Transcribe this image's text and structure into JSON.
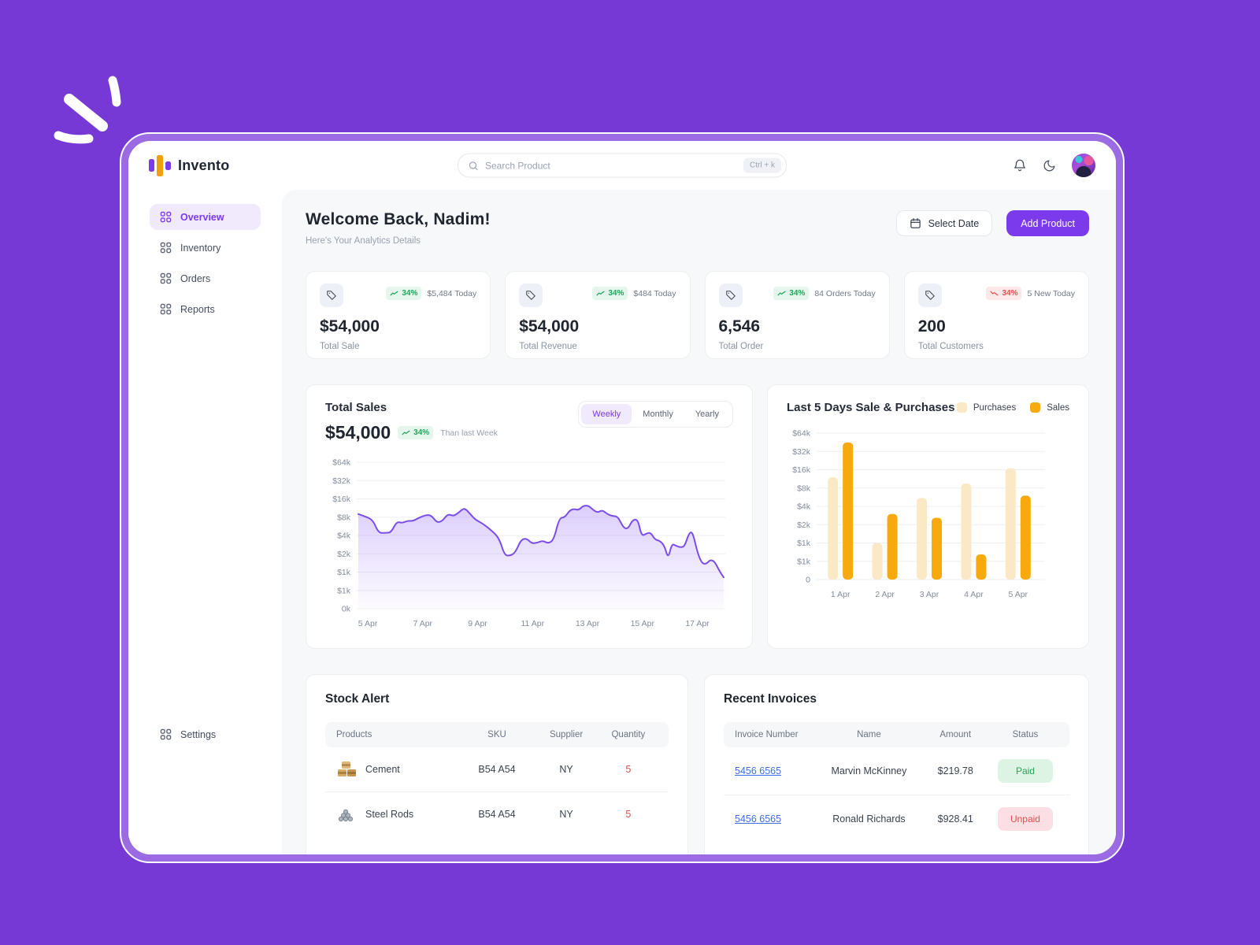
{
  "app": {
    "name": "Invento"
  },
  "topbar": {
    "search_placeholder": "Search Product",
    "search_shortcut": "Ctrl + k"
  },
  "sidebar": {
    "items": [
      {
        "label": "Overview",
        "active": true
      },
      {
        "label": "Inventory",
        "active": false
      },
      {
        "label": "Orders",
        "active": false
      },
      {
        "label": "Reports",
        "active": false
      }
    ],
    "settings_label": "Settings"
  },
  "header": {
    "title": "Welcome Back, Nadim!",
    "subtitle": "Here's Your Analytics Details",
    "select_date_label": "Select Date",
    "add_product_label": "Add Product"
  },
  "stats": [
    {
      "pct": "34%",
      "trend": "up",
      "note": "$5,484 Today",
      "value": "$54,000",
      "label": "Total Sale"
    },
    {
      "pct": "34%",
      "trend": "up",
      "note": "$484 Today",
      "value": "$54,000",
      "label": "Total Revenue"
    },
    {
      "pct": "34%",
      "trend": "up",
      "note": "84 Orders Today",
      "value": "6,546",
      "label": "Total Order"
    },
    {
      "pct": "34%",
      "trend": "down",
      "note": "5 New Today",
      "value": "200",
      "label": "Total Customers"
    }
  ],
  "sales_panel": {
    "title": "Total Sales",
    "value": "$54,000",
    "pct": "34%",
    "note": "Than last Week",
    "tabs": [
      "Weekly",
      "Monthly",
      "Yearly"
    ],
    "active_tab": "Weekly"
  },
  "bar_panel": {
    "title": "Last 5 Days Sale & Purchases",
    "legend": [
      {
        "name": "Purchases",
        "color": "#FBE9C6"
      },
      {
        "name": "Sales",
        "color": "#F7A90D"
      }
    ]
  },
  "chart_data": [
    {
      "type": "area",
      "title": "Total Sales (Weekly)",
      "line_color": "#7C4DE8",
      "y_ticks": [
        "$64k",
        "$32k",
        "$16k",
        "$8k",
        "$4k",
        "$2k",
        "$1k",
        "$1k",
        "0k"
      ],
      "x_labels": [
        "5 Apr",
        "7 Apr",
        "9 Apr",
        "11 Apr",
        "13 Apr",
        "15 Apr",
        "17 Apr"
      ],
      "scale": "log2, each gridline doubles from $500 (labels rounded), 0 at baseline",
      "points": [
        [
          0,
          9000
        ],
        [
          0.02,
          8200
        ],
        [
          0.04,
          7200
        ],
        [
          0.055,
          4400
        ],
        [
          0.075,
          4400
        ],
        [
          0.09,
          4500
        ],
        [
          0.105,
          6800
        ],
        [
          0.12,
          6400
        ],
        [
          0.135,
          7000
        ],
        [
          0.15,
          6900
        ],
        [
          0.165,
          7800
        ],
        [
          0.185,
          8700
        ],
        [
          0.2,
          8600
        ],
        [
          0.215,
          6500
        ],
        [
          0.23,
          6900
        ],
        [
          0.245,
          9100
        ],
        [
          0.26,
          8300
        ],
        [
          0.275,
          9500
        ],
        [
          0.29,
          11500
        ],
        [
          0.305,
          9200
        ],
        [
          0.32,
          7300
        ],
        [
          0.34,
          6300
        ],
        [
          0.36,
          5100
        ],
        [
          0.385,
          3700
        ],
        [
          0.4,
          1900
        ],
        [
          0.415,
          1850
        ],
        [
          0.43,
          2100
        ],
        [
          0.445,
          3400
        ],
        [
          0.46,
          3600
        ],
        [
          0.475,
          2950
        ],
        [
          0.49,
          3050
        ],
        [
          0.505,
          3300
        ],
        [
          0.52,
          2950
        ],
        [
          0.535,
          3400
        ],
        [
          0.55,
          7800
        ],
        [
          0.565,
          7900
        ],
        [
          0.578,
          10300
        ],
        [
          0.59,
          11000
        ],
        [
          0.603,
          10400
        ],
        [
          0.615,
          12300
        ],
        [
          0.63,
          12400
        ],
        [
          0.643,
          10500
        ],
        [
          0.655,
          9500
        ],
        [
          0.668,
          10500
        ],
        [
          0.68,
          9100
        ],
        [
          0.695,
          8300
        ],
        [
          0.71,
          8300
        ],
        [
          0.725,
          5400
        ],
        [
          0.738,
          5100
        ],
        [
          0.75,
          7200
        ],
        [
          0.765,
          7400
        ],
        [
          0.775,
          3900
        ],
        [
          0.788,
          4300
        ],
        [
          0.8,
          4500
        ],
        [
          0.812,
          3400
        ],
        [
          0.825,
          3300
        ],
        [
          0.838,
          2700
        ],
        [
          0.848,
          1650
        ],
        [
          0.858,
          2950
        ],
        [
          0.87,
          2700
        ],
        [
          0.882,
          2550
        ],
        [
          0.893,
          2650
        ],
        [
          0.905,
          4400
        ],
        [
          0.915,
          4600
        ],
        [
          0.928,
          2100
        ],
        [
          0.94,
          1400
        ],
        [
          0.952,
          1350
        ],
        [
          0.963,
          1600
        ],
        [
          0.975,
          1500
        ],
        [
          0.988,
          1050
        ],
        [
          1,
          820
        ]
      ]
    },
    {
      "type": "bar",
      "title": "Last 5 Days Sale & Purchases",
      "categories": [
        "1 Apr",
        "2 Apr",
        "3 Apr",
        "4 Apr",
        "5 Apr"
      ],
      "series": [
        {
          "name": "Purchases",
          "color": "#FBE9C6",
          "values": [
            12000,
            1000,
            5500,
            9500,
            17000
          ]
        },
        {
          "name": "Sales",
          "color": "#F7A90D",
          "values": [
            45000,
            3000,
            2600,
            650,
            6000
          ]
        }
      ],
      "y_ticks": [
        "$64k",
        "$32k",
        "$16k",
        "$8k",
        "$4k",
        "$2k",
        "$1k",
        "$1k",
        "0"
      ],
      "scale": "log2, each gridline doubles from $500 (labels rounded), 0 at baseline"
    }
  ],
  "stock_alert": {
    "title": "Stock Alert",
    "columns": [
      "Products",
      "SKU",
      "Supplier",
      "Quantity"
    ],
    "rows": [
      {
        "product": "Cement",
        "icon": "cement-icon",
        "sku": "B54 A54",
        "supplier": "NY",
        "quantity": "5"
      },
      {
        "product": "Steel Rods",
        "icon": "steel-rods-icon",
        "sku": "B54 A54",
        "supplier": "NY",
        "quantity": "5"
      }
    ]
  },
  "recent_invoices": {
    "title": "Recent Invoices",
    "columns": [
      "Invoice Number",
      "Name",
      "Amount",
      "Status"
    ],
    "rows": [
      {
        "number": "5456 6565",
        "name": "Marvin McKinney",
        "amount": "$219.78",
        "status": "Paid"
      },
      {
        "number": "5456 6565",
        "name": "Ronald Richards",
        "amount": "$928.41",
        "status": "Unpaid"
      }
    ]
  },
  "colors": {
    "background": "#7639D6",
    "frame_ring": "#9B6BE4",
    "accent": "#7C3AED",
    "green": "#1FA45B",
    "red": "#E4504F",
    "line": "#7C4DE8",
    "bar_sales": "#F7A90D",
    "bar_purchases": "#FBE9C6",
    "link": "#3E6FE8"
  }
}
